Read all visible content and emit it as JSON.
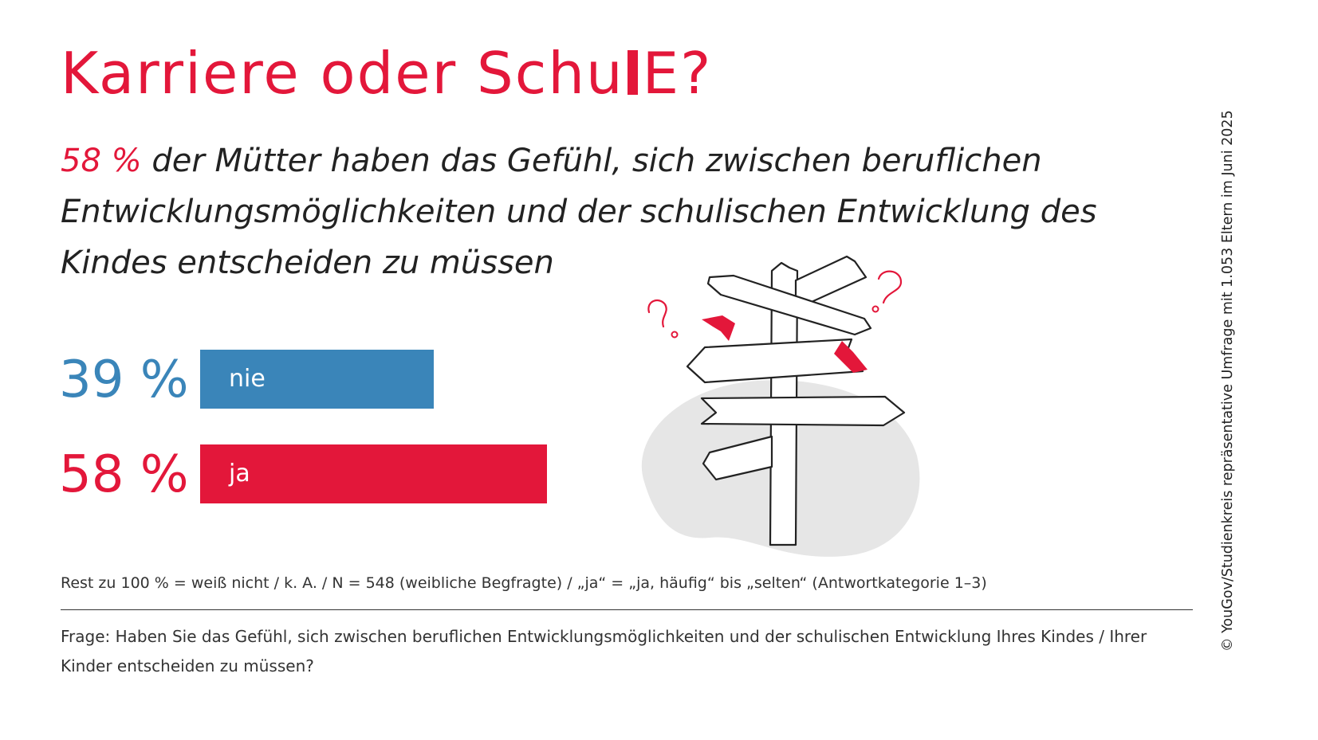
{
  "title": {
    "before": "Karriere oder Schu",
    "after": "E?"
  },
  "subtitle": {
    "highlight": "58 %",
    "text": " der Mütter haben das Gefühl, sich zwischen beruflichen Entwicklungsmöglichkeiten und der schulischen Entwicklung des Kindes entscheiden zu müssen"
  },
  "chart_data": {
    "type": "bar",
    "orientation": "horizontal",
    "categories": [
      "nie",
      "ja"
    ],
    "values": [
      39,
      58
    ],
    "value_labels": [
      "39 %",
      "58 %"
    ],
    "colors": [
      "#3a85b9",
      "#e3173a"
    ],
    "xlim": [
      0,
      100
    ],
    "title": "",
    "xlabel": "",
    "ylabel": ""
  },
  "footnote": "Rest zu 100 % = weiß nicht / k. A. / N = 548 (weibliche Begfragte) / „ja“ = „ja, häufig“ bis „selten“ (Antwortkategorie 1–3)",
  "question": "Frage: Haben Sie das Gefühl, sich zwischen beruflichen Entwicklungsmöglichkeiten und der schulischen Entwicklung Ihres Kindes / Ihrer Kinder entscheiden zu müssen?",
  "credit": "© YouGov/Studienkreis repräsentative Umfrage mit 1.053 Eltern im Juni 2025",
  "illustration": {
    "icon": "signpost-icon",
    "accent_color": "#e3173a",
    "shadow_color": "#e6e6e6"
  }
}
